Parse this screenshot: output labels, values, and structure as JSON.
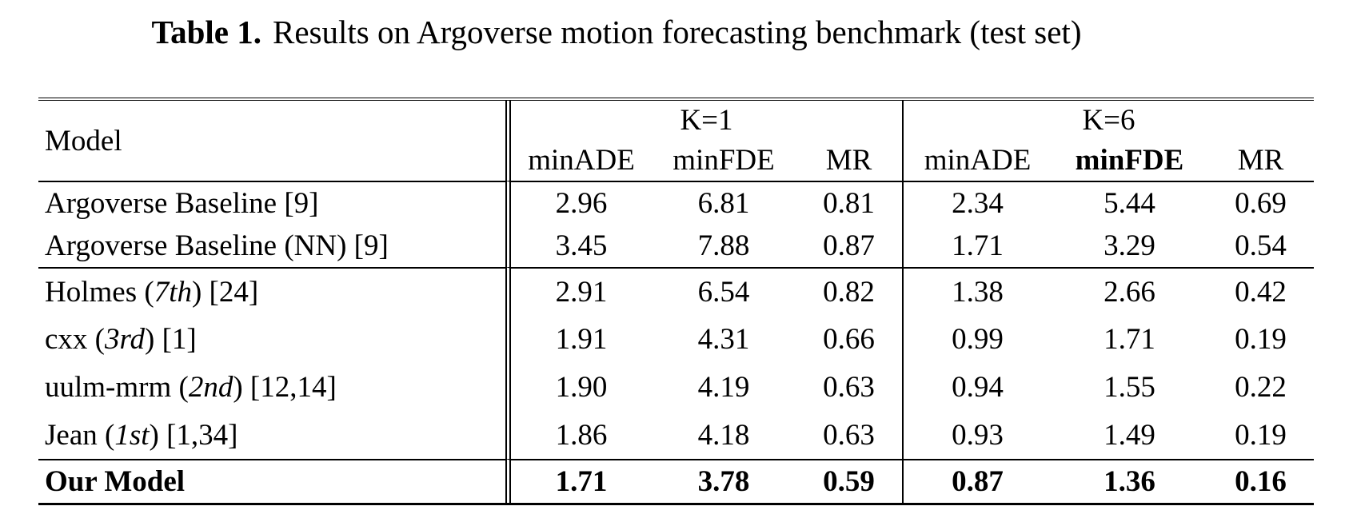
{
  "title": {
    "label": "Table 1.",
    "text": "Results on Argoverse motion forecasting benchmark (test set)"
  },
  "table": {
    "corner_label": "Model",
    "groups": [
      {
        "label": "K=1",
        "sub": [
          {
            "label": "minADE",
            "bold": false
          },
          {
            "label": "minFDE",
            "bold": false
          },
          {
            "label": "MR",
            "bold": false
          }
        ]
      },
      {
        "label": "K=6",
        "sub": [
          {
            "label": "minADE",
            "bold": false
          },
          {
            "label": "minFDE",
            "bold": true
          },
          {
            "label": "MR",
            "bold": false
          }
        ]
      }
    ],
    "rows": [
      {
        "model": {
          "pre": "Argoverse Baseline [9]",
          "it": "",
          "post": ""
        },
        "values": [
          "2.96",
          "6.81",
          "0.81",
          "2.34",
          "5.44",
          "0.69"
        ],
        "bold": false
      },
      {
        "model": {
          "pre": "Argoverse Baseline (NN) [9]",
          "it": "",
          "post": ""
        },
        "values": [
          "3.45",
          "7.88",
          "0.87",
          "1.71",
          "3.29",
          "0.54"
        ],
        "bold": false
      },
      {
        "model": {
          "pre": "Holmes (",
          "it": "7th",
          "post": ") [24]"
        },
        "values": [
          "2.91",
          "6.54",
          "0.82",
          "1.38",
          "2.66",
          "0.42"
        ],
        "bold": false
      },
      {
        "model": {
          "pre": "cxx (",
          "it": "3rd",
          "post": ") [1]"
        },
        "values": [
          "1.91",
          "4.31",
          "0.66",
          "0.99",
          "1.71",
          "0.19"
        ],
        "bold": false
      },
      {
        "model": {
          "pre": "uulm-mrm (",
          "it": "2nd",
          "post": ") [12,14]"
        },
        "values": [
          "1.90",
          "4.19",
          "0.63",
          "0.94",
          "1.55",
          "0.22"
        ],
        "bold": false
      },
      {
        "model": {
          "pre": "Jean (",
          "it": "1st",
          "post": ") [1,34]"
        },
        "values": [
          "1.86",
          "4.18",
          "0.63",
          "0.93",
          "1.49",
          "0.19"
        ],
        "bold": false
      },
      {
        "model": {
          "pre": "Our Model",
          "it": "",
          "post": ""
        },
        "values": [
          "1.71",
          "3.78",
          "0.59",
          "0.87",
          "1.36",
          "0.16"
        ],
        "bold": true
      }
    ]
  }
}
